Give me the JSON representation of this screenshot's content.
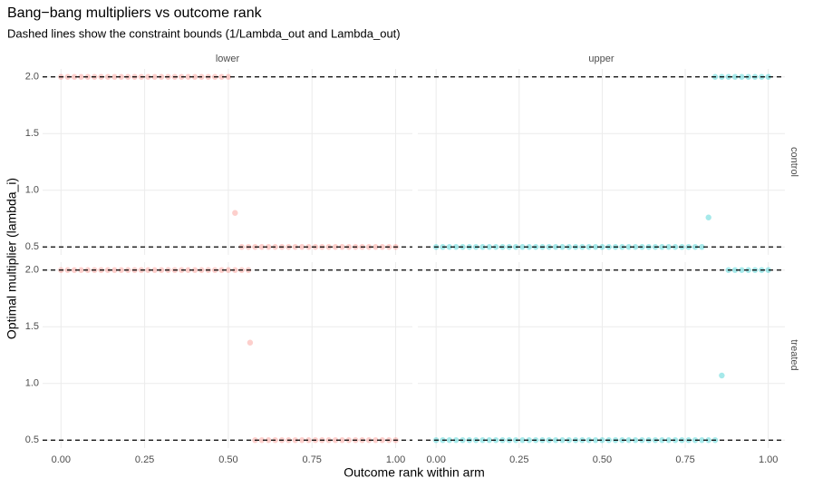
{
  "chart_data": {
    "type": "scatter",
    "title": "Bang−bang multipliers vs outcome rank",
    "subtitle": "Dashed lines show the constraint bounds (1/Lambda_out and Lambda_out)",
    "x_label": "Outcome rank within arm",
    "y_label": "Optimal multiplier (lambda_i)",
    "facet_cols": [
      "lower",
      "upper"
    ],
    "facet_rows": [
      "control",
      "treated"
    ],
    "xlim": [
      -0.055,
      1.05
    ],
    "ylim": [
      0.43,
      2.07
    ],
    "xticks": [
      {
        "value": 0,
        "label": "0.00"
      },
      {
        "value": 0.25,
        "label": "0.25"
      },
      {
        "value": 0.5,
        "label": "0.50"
      },
      {
        "value": 0.75,
        "label": "0.75"
      },
      {
        "value": 1,
        "label": "1.00"
      }
    ],
    "yticks": [
      0.5,
      {
        "value": 1,
        "label": "1.0"
      },
      1.5,
      {
        "value": 2,
        "label": "2.0"
      }
    ],
    "hlines": [
      0.5,
      2
    ],
    "grid": true,
    "panels": [
      {
        "color": "#F8766D",
        "x": [
          0,
          0.02,
          0.04,
          0.06,
          0.08,
          0.1,
          0.12,
          0.14,
          0.16,
          0.18,
          0.2,
          0.22,
          0.24,
          0.26,
          0.28,
          0.3,
          0.32,
          0.34,
          0.36,
          0.38,
          0.4,
          0.42,
          0.44,
          0.46,
          0.48,
          0.5,
          0.52,
          0.54,
          0.56,
          0.58,
          0.6,
          0.62,
          0.64,
          0.66,
          0.68,
          0.7,
          0.72,
          0.74,
          0.76,
          0.78,
          0.8,
          0.82,
          0.84,
          0.86,
          0.88,
          0.9,
          0.92,
          0.94,
          0.96,
          0.98,
          1
        ],
        "values": [
          2,
          2,
          2,
          2,
          2,
          2,
          2,
          2,
          2,
          2,
          2,
          2,
          2,
          2,
          2,
          2,
          2,
          2,
          2,
          2,
          2,
          2,
          2,
          2,
          2,
          2,
          0.8,
          0.5,
          0.5,
          0.5,
          0.5,
          0.5,
          0.5,
          0.5,
          0.5,
          0.5,
          0.5,
          0.5,
          0.5,
          0.5,
          0.5,
          0.5,
          0.5,
          0.5,
          0.5,
          0.5,
          0.5,
          0.5,
          0.5,
          0.5,
          0.5
        ]
      },
      {
        "color": "#00BFC4",
        "x": [
          0,
          0.02,
          0.04,
          0.06,
          0.08,
          0.1,
          0.12,
          0.14,
          0.16,
          0.18,
          0.2,
          0.22,
          0.24,
          0.26,
          0.28,
          0.3,
          0.32,
          0.34,
          0.36,
          0.38,
          0.4,
          0.42,
          0.44,
          0.46,
          0.48,
          0.5,
          0.52,
          0.54,
          0.56,
          0.58,
          0.6,
          0.62,
          0.64,
          0.66,
          0.68,
          0.7,
          0.72,
          0.74,
          0.76,
          0.78,
          0.8,
          0.82,
          0.84,
          0.86,
          0.88,
          0.9,
          0.92,
          0.94,
          0.96,
          0.98,
          1
        ],
        "values": [
          0.5,
          0.5,
          0.5,
          0.5,
          0.5,
          0.5,
          0.5,
          0.5,
          0.5,
          0.5,
          0.5,
          0.5,
          0.5,
          0.5,
          0.5,
          0.5,
          0.5,
          0.5,
          0.5,
          0.5,
          0.5,
          0.5,
          0.5,
          0.5,
          0.5,
          0.5,
          0.5,
          0.5,
          0.5,
          0.5,
          0.5,
          0.5,
          0.5,
          0.5,
          0.5,
          0.5,
          0.5,
          0.5,
          0.5,
          0.5,
          0.5,
          0.76,
          2,
          2,
          2,
          2,
          2,
          2,
          2,
          2,
          2
        ]
      },
      {
        "color": "#F8766D",
        "x": [
          0,
          0.02,
          0.04,
          0.06,
          0.08,
          0.1,
          0.12,
          0.14,
          0.16,
          0.18,
          0.2,
          0.22,
          0.24,
          0.26,
          0.28,
          0.3,
          0.32,
          0.34,
          0.36,
          0.38,
          0.4,
          0.42,
          0.44,
          0.46,
          0.48,
          0.5,
          0.52,
          0.54,
          0.56,
          0.565,
          0.58,
          0.6,
          0.62,
          0.64,
          0.66,
          0.68,
          0.7,
          0.72,
          0.74,
          0.76,
          0.78,
          0.8,
          0.82,
          0.84,
          0.86,
          0.88,
          0.9,
          0.92,
          0.94,
          0.96,
          0.98,
          1
        ],
        "values": [
          2,
          2,
          2,
          2,
          2,
          2,
          2,
          2,
          2,
          2,
          2,
          2,
          2,
          2,
          2,
          2,
          2,
          2,
          2,
          2,
          2,
          2,
          2,
          2,
          2,
          2,
          2,
          2,
          2,
          1.36,
          0.5,
          0.5,
          0.5,
          0.5,
          0.5,
          0.5,
          0.5,
          0.5,
          0.5,
          0.5,
          0.5,
          0.5,
          0.5,
          0.5,
          0.5,
          0.5,
          0.5,
          0.5,
          0.5,
          0.5,
          0.5,
          0.5
        ]
      },
      {
        "color": "#00BFC4",
        "x": [
          0,
          0.02,
          0.04,
          0.06,
          0.08,
          0.1,
          0.12,
          0.14,
          0.16,
          0.18,
          0.2,
          0.22,
          0.24,
          0.26,
          0.28,
          0.3,
          0.32,
          0.34,
          0.36,
          0.38,
          0.4,
          0.42,
          0.44,
          0.46,
          0.48,
          0.5,
          0.52,
          0.54,
          0.56,
          0.58,
          0.6,
          0.62,
          0.64,
          0.66,
          0.68,
          0.7,
          0.72,
          0.74,
          0.76,
          0.78,
          0.8,
          0.82,
          0.84,
          0.86,
          0.88,
          0.9,
          0.92,
          0.94,
          0.96,
          0.98,
          1
        ],
        "values": [
          0.5,
          0.5,
          0.5,
          0.5,
          0.5,
          0.5,
          0.5,
          0.5,
          0.5,
          0.5,
          0.5,
          0.5,
          0.5,
          0.5,
          0.5,
          0.5,
          0.5,
          0.5,
          0.5,
          0.5,
          0.5,
          0.5,
          0.5,
          0.5,
          0.5,
          0.5,
          0.5,
          0.5,
          0.5,
          0.5,
          0.5,
          0.5,
          0.5,
          0.5,
          0.5,
          0.5,
          0.5,
          0.5,
          0.5,
          0.5,
          0.5,
          0.5,
          0.5,
          1.07,
          2,
          2,
          2,
          2,
          2,
          2,
          2
        ]
      }
    ]
  }
}
